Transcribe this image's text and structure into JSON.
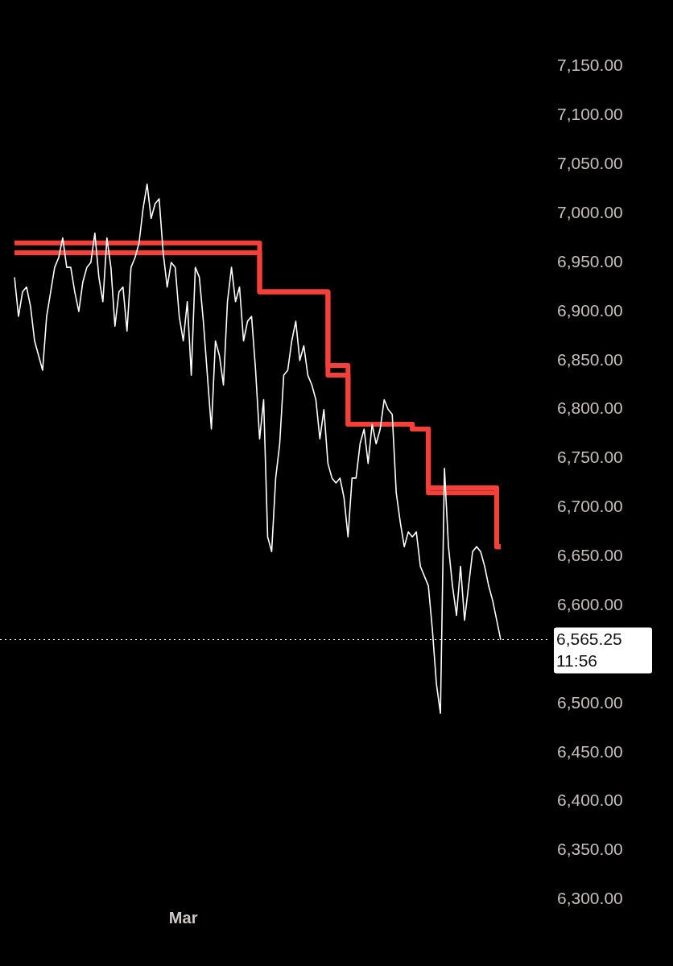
{
  "chart_data": {
    "type": "line",
    "categories": [
      null,
      null,
      null,
      null,
      null,
      null,
      null,
      null,
      null,
      null,
      null,
      null,
      null,
      null,
      null,
      null,
      null,
      null,
      null,
      null,
      null,
      null,
      null,
      null,
      null,
      null,
      null,
      null,
      null,
      null,
      null,
      null,
      null,
      null,
      null,
      null,
      null,
      null,
      null,
      null,
      null,
      null,
      "Mar",
      null,
      null,
      null,
      null,
      null,
      null,
      null,
      null,
      null,
      null,
      null,
      null,
      null,
      null,
      null,
      null,
      null,
      null,
      null,
      null,
      null,
      null,
      null,
      null,
      null,
      null,
      null,
      null,
      null,
      null,
      null,
      null,
      null,
      null,
      null,
      null,
      null,
      null,
      null,
      null,
      null,
      null,
      null,
      null,
      null,
      null,
      null,
      null,
      null,
      null,
      null,
      null,
      null,
      null,
      null,
      null,
      null,
      null,
      null,
      null,
      null,
      null,
      null,
      null,
      null,
      null,
      null,
      null,
      null,
      null,
      null,
      null,
      null,
      null,
      null,
      null,
      null,
      null,
      null
    ],
    "series": [
      {
        "type": "line",
        "color": "#ffffff",
        "values": [
          6935,
          6895,
          6920,
          6925,
          6905,
          6870,
          6855,
          6840,
          6895,
          6920,
          6945,
          6955,
          6975,
          6945,
          6945,
          6920,
          6900,
          6930,
          6945,
          6950,
          6980,
          6935,
          6910,
          6975,
          6945,
          6885,
          6920,
          6925,
          6880,
          6945,
          6955,
          6970,
          7005,
          7030,
          6995,
          7010,
          7015,
          6960,
          6925,
          6950,
          6945,
          6895,
          6870,
          6910,
          6835,
          6945,
          6935,
          6890,
          6835,
          6780,
          6870,
          6855,
          6825,
          6910,
          6945,
          6910,
          6925,
          6870,
          6890,
          6895,
          6840,
          6770,
          6810,
          6670,
          6655,
          6730,
          6765,
          6835,
          6840,
          6870,
          6890,
          6850,
          6865,
          6835,
          6825,
          6810,
          6770,
          6800,
          6745,
          6730,
          6725,
          6730,
          6710,
          6670,
          6730,
          6730,
          6765,
          6780,
          6745,
          6785,
          6765,
          6780,
          6810,
          6800,
          6795,
          6715,
          6685,
          6660,
          6675,
          6670,
          6675,
          6640,
          6630,
          6620,
          6575,
          6520,
          6490,
          6740,
          6660,
          6620,
          6590,
          6640,
          6585,
          6620,
          6655,
          6660,
          6655,
          6640,
          6620,
          6605,
          6585,
          6565
        ]
      },
      {
        "type": "step",
        "color": "#f5403a",
        "values": [
          6970,
          6970,
          6970,
          6970,
          6970,
          6970,
          6970,
          6970,
          6970,
          6970,
          6970,
          6970,
          6970,
          6970,
          6970,
          6970,
          6970,
          6970,
          6970,
          6970,
          6970,
          6970,
          6970,
          6970,
          6970,
          6970,
          6970,
          6970,
          6970,
          6970,
          6970,
          6970,
          6970,
          6970,
          6970,
          6970,
          6970,
          6970,
          6970,
          6970,
          6970,
          6970,
          6970,
          6970,
          6970,
          6970,
          6970,
          6970,
          6970,
          6970,
          6970,
          6970,
          6970,
          6970,
          6970,
          6970,
          6970,
          6970,
          6970,
          6970,
          6970,
          6970,
          6920,
          6920,
          6920,
          6920,
          6920,
          6920,
          6920,
          6920,
          6920,
          6920,
          6920,
          6920,
          6920,
          6920,
          6920,
          6920,
          6920,
          6845,
          6845,
          6845,
          6845,
          6845,
          6785,
          6785,
          6785,
          6785,
          6785,
          6785,
          6785,
          6785,
          6785,
          6785,
          6785,
          6785,
          6785,
          6785,
          6785,
          6785,
          6780,
          6780,
          6780,
          6780,
          6720,
          6720,
          6720,
          6720,
          6720,
          6720,
          6720,
          6720,
          6720,
          6720,
          6720,
          6720,
          6720,
          6720,
          6720,
          6720,
          6720,
          6660
        ]
      },
      {
        "type": "step",
        "color": "#f5403a",
        "values": [
          6960,
          6960,
          6960,
          6960,
          6960,
          6960,
          6960,
          6960,
          6960,
          6960,
          6960,
          6960,
          6960,
          6960,
          6960,
          6960,
          6960,
          6960,
          6960,
          6960,
          6960,
          6960,
          6960,
          6960,
          6960,
          6960,
          6960,
          6960,
          6960,
          6960,
          6960,
          6960,
          6960,
          6960,
          6960,
          6960,
          6960,
          6960,
          6960,
          6960,
          6960,
          6960,
          6960,
          6960,
          6960,
          6960,
          6960,
          6960,
          6960,
          6960,
          6960,
          6960,
          6960,
          6960,
          6960,
          6960,
          6960,
          6960,
          6960,
          6960,
          6960,
          6960,
          6920,
          6920,
          6920,
          6920,
          6920,
          6920,
          6920,
          6920,
          6920,
          6920,
          6920,
          6920,
          6920,
          6920,
          6920,
          6920,
          6920,
          6835,
          6835,
          6835,
          6835,
          6835,
          6785,
          6785,
          6785,
          6785,
          6785,
          6785,
          6785,
          6785,
          6785,
          6785,
          6785,
          6785,
          6785,
          6785,
          6785,
          6785,
          6780,
          6780,
          6780,
          6780,
          6715,
          6715,
          6715,
          6715,
          6715,
          6715,
          6715,
          6715,
          6715,
          6715,
          6715,
          6715,
          6715,
          6715,
          6715,
          6715,
          6715,
          6660
        ]
      }
    ],
    "ylim": [
      6300,
      7150
    ],
    "yticks": [
      {
        "value": 6300,
        "label": "6,300.00"
      },
      {
        "value": 6350,
        "label": "6,350.00"
      },
      {
        "value": 6400,
        "label": "6,400.00"
      },
      {
        "value": 6450,
        "label": "6,450.00"
      },
      {
        "value": 6500,
        "label": "6,500.00"
      },
      {
        "value": 6600,
        "label": "6,600.00"
      },
      {
        "value": 6650,
        "label": "6,650.00"
      },
      {
        "value": 6700,
        "label": "6,700.00"
      },
      {
        "value": 6750,
        "label": "6,750.00"
      },
      {
        "value": 6800,
        "label": "6,800.00"
      },
      {
        "value": 6850,
        "label": "6,850.00"
      },
      {
        "value": 6900,
        "label": "6,900.00"
      },
      {
        "value": 6950,
        "label": "6,950.00"
      },
      {
        "value": 7000,
        "label": "7,000.00"
      },
      {
        "value": 7050,
        "label": "7,050.00"
      },
      {
        "value": 7100,
        "label": "7,100.00"
      },
      {
        "value": 7150,
        "label": "7,150.00"
      }
    ],
    "ref_lines": [
      {
        "axis": "y",
        "value": 6565.25,
        "label": "6,565.25",
        "color": "#ffffff",
        "line_style": "dotted"
      }
    ],
    "annotations": [
      "11:56"
    ]
  }
}
